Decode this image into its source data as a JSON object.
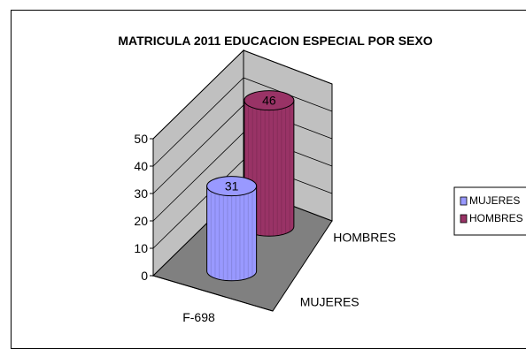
{
  "chart_data": {
    "type": "bar",
    "title": "MATRICULA 2011 EDUCACION ESPECIAL POR SEXO",
    "categories": [
      "F-698"
    ],
    "series": [
      {
        "name": "MUJERES",
        "values": [
          31
        ],
        "color": "#9999ff"
      },
      {
        "name": "HOMBRES",
        "values": [
          46
        ],
        "color": "#993366"
      }
    ],
    "ylim": [
      0,
      50
    ],
    "yticks": [
      "0",
      "10",
      "20",
      "30",
      "40",
      "50"
    ],
    "depth_labels": [
      "MUJERES",
      "HOMBRES"
    ],
    "data_labels": [
      "31",
      "46"
    ],
    "legend": {
      "position": "right",
      "items": [
        "MUJERES",
        "HOMBRES"
      ]
    },
    "style": "3d-cylinder",
    "colors": {
      "walls": "#c0c0c0",
      "floor": "#808080",
      "gridline": "#000000"
    }
  }
}
